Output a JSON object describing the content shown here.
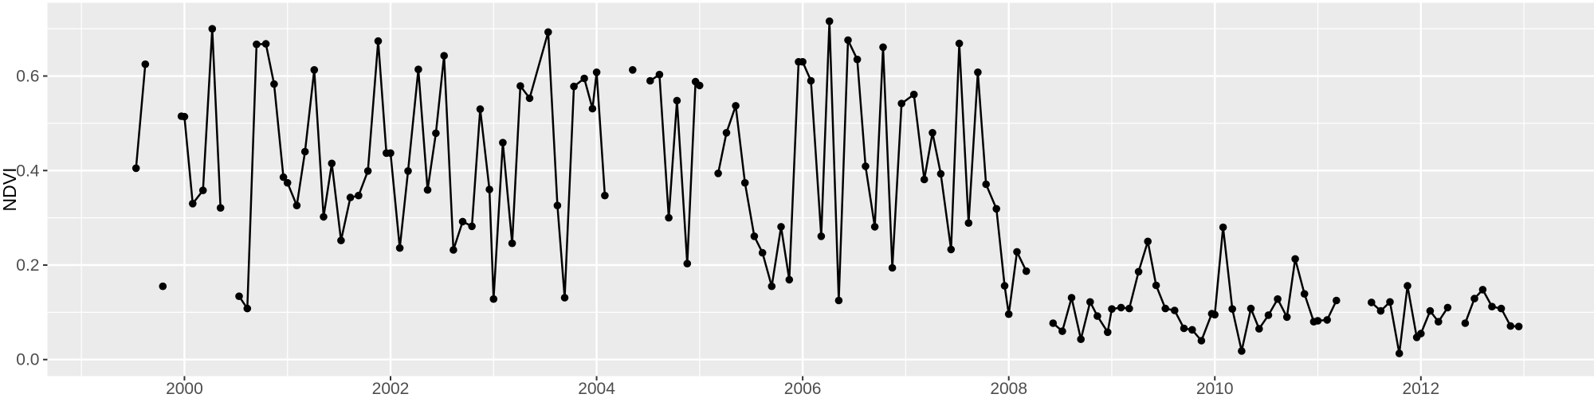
{
  "figure": {
    "kind": "ggplot-time-series",
    "background": "#FFFFFF"
  },
  "chart_data": {
    "type": "line",
    "title": "",
    "xlabel": "",
    "ylabel": "NDVI",
    "legend": "none",
    "grid": "major-and-minor",
    "xlim": [
      1998.67,
      2013.68
    ],
    "ylim": [
      -0.035,
      0.755
    ],
    "x_ticks": [
      2000,
      2002,
      2004,
      2006,
      2008,
      2010,
      2012
    ],
    "x_tick_labels": [
      "2000",
      "2002",
      "2004",
      "2006",
      "2008",
      "2010",
      "2012"
    ],
    "x_minor_ticks": [
      1999,
      2001,
      2003,
      2005,
      2007,
      2009,
      2011,
      2013
    ],
    "y_ticks": [
      0.0,
      0.2,
      0.4,
      0.6
    ],
    "y_tick_labels": [
      "0.0",
      "0.2",
      "0.4",
      "0.6"
    ],
    "y_minor_ticks": [
      0.1,
      0.3,
      0.5,
      0.7
    ],
    "style": {
      "panel_bg": "#EBEBEB",
      "grid_color": "#FFFFFF",
      "line_color": "#000000",
      "point_color": "#000000",
      "tick_mark_color": "#333333",
      "tick_label_color": "#4D4D4D",
      "axis_title_color": "#000000",
      "outer_bg": "#FFFFFF"
    },
    "series": [
      {
        "name": "NDVI",
        "segments": [
          [
            [
              1999.53,
              0.405
            ],
            [
              1999.62,
              0.625
            ]
          ],
          [
            [
              1999.79,
              0.155
            ]
          ],
          [
            [
              1999.97,
              0.515
            ],
            [
              2000.0,
              0.514
            ],
            [
              2000.08,
              0.33
            ],
            [
              2000.18,
              0.358
            ],
            [
              2000.27,
              0.7
            ],
            [
              2000.35,
              0.321
            ]
          ],
          [
            [
              2000.53,
              0.134
            ],
            [
              2000.61,
              0.108
            ],
            [
              2000.7,
              0.667
            ],
            [
              2000.79,
              0.668
            ],
            [
              2000.87,
              0.583
            ],
            [
              2000.96,
              0.386
            ],
            [
              2001.0,
              0.374
            ],
            [
              2001.09,
              0.326
            ],
            [
              2001.17,
              0.44
            ],
            [
              2001.26,
              0.613
            ],
            [
              2001.35,
              0.302
            ],
            [
              2001.43,
              0.415
            ],
            [
              2001.52,
              0.252
            ],
            [
              2001.61,
              0.343
            ],
            [
              2001.69,
              0.347
            ],
            [
              2001.78,
              0.399
            ],
            [
              2001.88,
              0.674
            ],
            [
              2001.96,
              0.437
            ],
            [
              2002.0,
              0.437
            ],
            [
              2002.09,
              0.236
            ],
            [
              2002.17,
              0.399
            ],
            [
              2002.27,
              0.614
            ],
            [
              2002.36,
              0.359
            ],
            [
              2002.44,
              0.479
            ],
            [
              2002.52,
              0.643
            ],
            [
              2002.61,
              0.232
            ],
            [
              2002.7,
              0.292
            ],
            [
              2002.79,
              0.282
            ],
            [
              2002.87,
              0.53
            ],
            [
              2002.96,
              0.36
            ],
            [
              2003.0,
              0.128
            ],
            [
              2003.09,
              0.459
            ],
            [
              2003.18,
              0.246
            ],
            [
              2003.26,
              0.579
            ],
            [
              2003.35,
              0.553
            ],
            [
              2003.53,
              0.693
            ],
            [
              2003.62,
              0.326
            ],
            [
              2003.69,
              0.131
            ],
            [
              2003.78,
              0.578
            ],
            [
              2003.88,
              0.595
            ],
            [
              2003.96,
              0.531
            ],
            [
              2004.0,
              0.608
            ],
            [
              2004.08,
              0.347
            ]
          ],
          [
            [
              2004.35,
              0.613
            ]
          ],
          [
            [
              2004.52,
              0.59
            ],
            [
              2004.61,
              0.603
            ],
            [
              2004.7,
              0.3
            ],
            [
              2004.78,
              0.548
            ],
            [
              2004.88,
              0.203
            ],
            [
              2004.96,
              0.588
            ],
            [
              2005.0,
              0.58
            ]
          ],
          [
            [
              2005.18,
              0.394
            ],
            [
              2005.26,
              0.48
            ],
            [
              2005.35,
              0.537
            ],
            [
              2005.44,
              0.374
            ],
            [
              2005.53,
              0.261
            ],
            [
              2005.61,
              0.226
            ],
            [
              2005.7,
              0.155
            ],
            [
              2005.79,
              0.281
            ],
            [
              2005.87,
              0.169
            ],
            [
              2005.96,
              0.63
            ],
            [
              2006.0,
              0.63
            ],
            [
              2006.08,
              0.59
            ],
            [
              2006.18,
              0.261
            ],
            [
              2006.26,
              0.716
            ],
            [
              2006.35,
              0.125
            ],
            [
              2006.44,
              0.676
            ],
            [
              2006.53,
              0.635
            ],
            [
              2006.61,
              0.409
            ],
            [
              2006.7,
              0.281
            ],
            [
              2006.78,
              0.661
            ],
            [
              2006.87,
              0.194
            ],
            [
              2006.96,
              0.542
            ],
            [
              2007.08,
              0.561
            ],
            [
              2007.18,
              0.381
            ],
            [
              2007.26,
              0.48
            ],
            [
              2007.34,
              0.393
            ],
            [
              2007.44,
              0.233
            ],
            [
              2007.52,
              0.669
            ],
            [
              2007.61,
              0.289
            ],
            [
              2007.7,
              0.608
            ],
            [
              2007.78,
              0.371
            ],
            [
              2007.88,
              0.319
            ],
            [
              2007.96,
              0.156
            ],
            [
              2008.0,
              0.096
            ],
            [
              2008.08,
              0.228
            ],
            [
              2008.17,
              0.187
            ]
          ],
          [
            [
              2008.43,
              0.077
            ],
            [
              2008.52,
              0.06
            ],
            [
              2008.61,
              0.131
            ],
            [
              2008.7,
              0.043
            ],
            [
              2008.79,
              0.122
            ],
            [
              2008.86,
              0.092
            ],
            [
              2008.96,
              0.058
            ],
            [
              2009.0,
              0.107
            ],
            [
              2009.09,
              0.11
            ],
            [
              2009.17,
              0.108
            ],
            [
              2009.26,
              0.186
            ],
            [
              2009.35,
              0.25
            ],
            [
              2009.43,
              0.157
            ],
            [
              2009.52,
              0.108
            ],
            [
              2009.61,
              0.104
            ],
            [
              2009.7,
              0.066
            ],
            [
              2009.78,
              0.063
            ],
            [
              2009.87,
              0.04
            ],
            [
              2009.97,
              0.097
            ],
            [
              2010.0,
              0.095
            ],
            [
              2010.08,
              0.28
            ],
            [
              2010.17,
              0.107
            ],
            [
              2010.26,
              0.018
            ],
            [
              2010.35,
              0.108
            ],
            [
              2010.43,
              0.065
            ],
            [
              2010.52,
              0.094
            ],
            [
              2010.61,
              0.128
            ],
            [
              2010.7,
              0.09
            ],
            [
              2010.78,
              0.213
            ],
            [
              2010.87,
              0.139
            ],
            [
              2010.96,
              0.08
            ],
            [
              2011.0,
              0.082
            ],
            [
              2011.09,
              0.084
            ],
            [
              2011.18,
              0.125
            ]
          ],
          [
            [
              2011.52,
              0.121
            ],
            [
              2011.61,
              0.103
            ],
            [
              2011.7,
              0.122
            ],
            [
              2011.79,
              0.013
            ],
            [
              2011.87,
              0.156
            ],
            [
              2011.96,
              0.047
            ],
            [
              2012.0,
              0.055
            ],
            [
              2012.09,
              0.103
            ],
            [
              2012.17,
              0.08
            ],
            [
              2012.26,
              0.11
            ]
          ],
          [
            [
              2012.43,
              0.077
            ],
            [
              2012.52,
              0.129
            ],
            [
              2012.6,
              0.148
            ],
            [
              2012.69,
              0.112
            ],
            [
              2012.78,
              0.108
            ],
            [
              2012.87,
              0.071
            ],
            [
              2012.95,
              0.07
            ]
          ]
        ]
      }
    ]
  }
}
